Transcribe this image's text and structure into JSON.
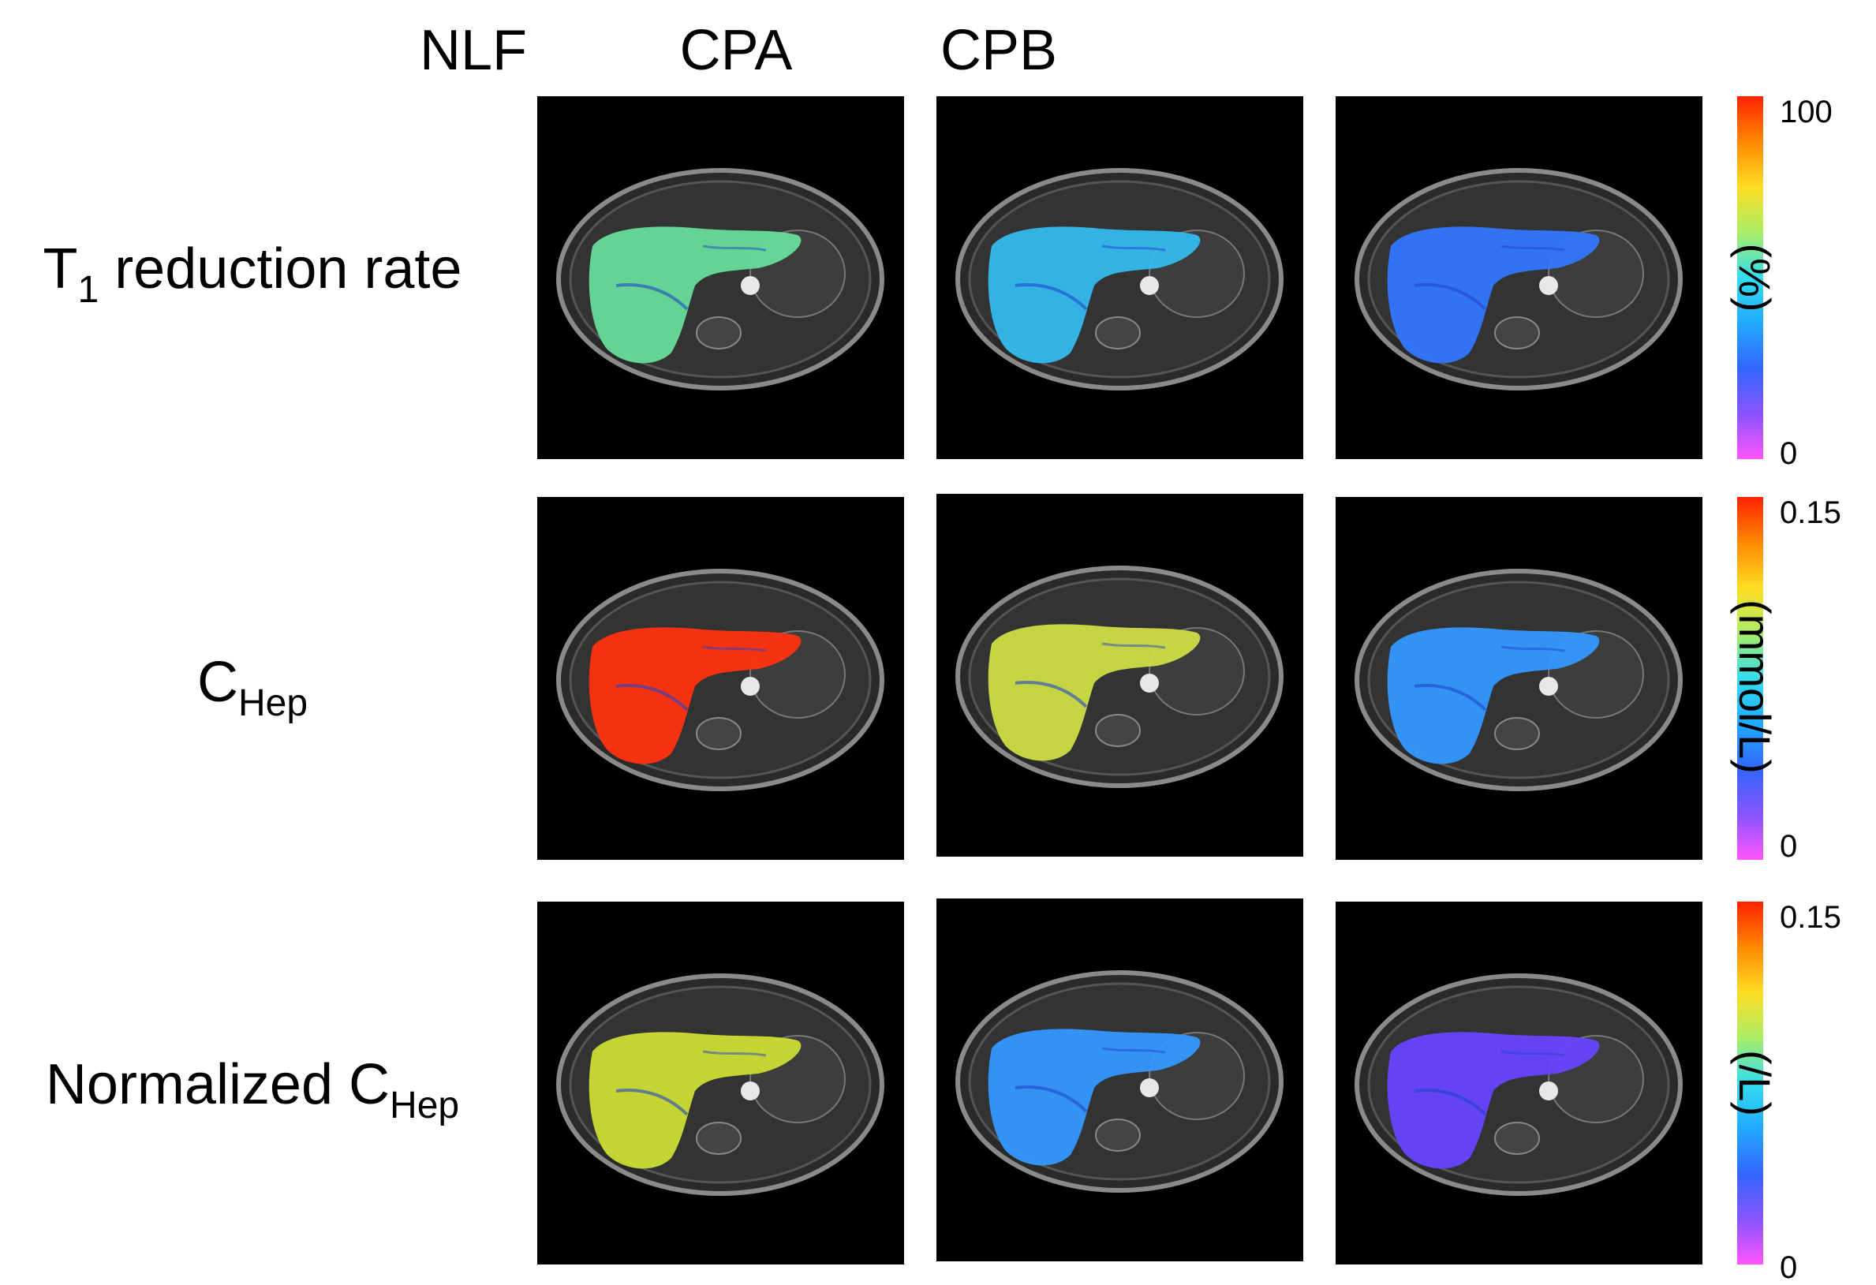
{
  "columns": [
    "NLF",
    "CPA",
    "CPB"
  ],
  "rows": [
    {
      "label_main": "T",
      "label_sub": "1",
      "label_rest": " reduction rate"
    },
    {
      "label_main": "C",
      "label_sub": "Hep",
      "label_rest": ""
    },
    {
      "label_main": "Normalized C",
      "label_sub": "Hep",
      "label_rest": ""
    }
  ],
  "colorbars": [
    {
      "max": "100",
      "min": "0",
      "unit": "(%)"
    },
    {
      "max": "0.15",
      "min": "0",
      "unit": "(mmol/L)"
    },
    {
      "max": "0.15",
      "min": "0",
      "unit": "(/L)"
    }
  ],
  "colormap": [
    "#ff55ff",
    "#8855ff",
    "#3366ff",
    "#22aaff",
    "#33ddee",
    "#aaee66",
    "#ffdd22",
    "#ff8800",
    "#ff2200"
  ],
  "liver_colors": {
    "r0c0": "#66dd99",
    "r0c1": "#33bbee",
    "r0c2": "#3377ff",
    "r1c0": "#ff3311",
    "r1c1": "#ccdd44",
    "r1c2": "#3399ff",
    "r2c0": "#ccdd33",
    "r2c1": "#3399ff",
    "r2c2": "#6644ff"
  }
}
